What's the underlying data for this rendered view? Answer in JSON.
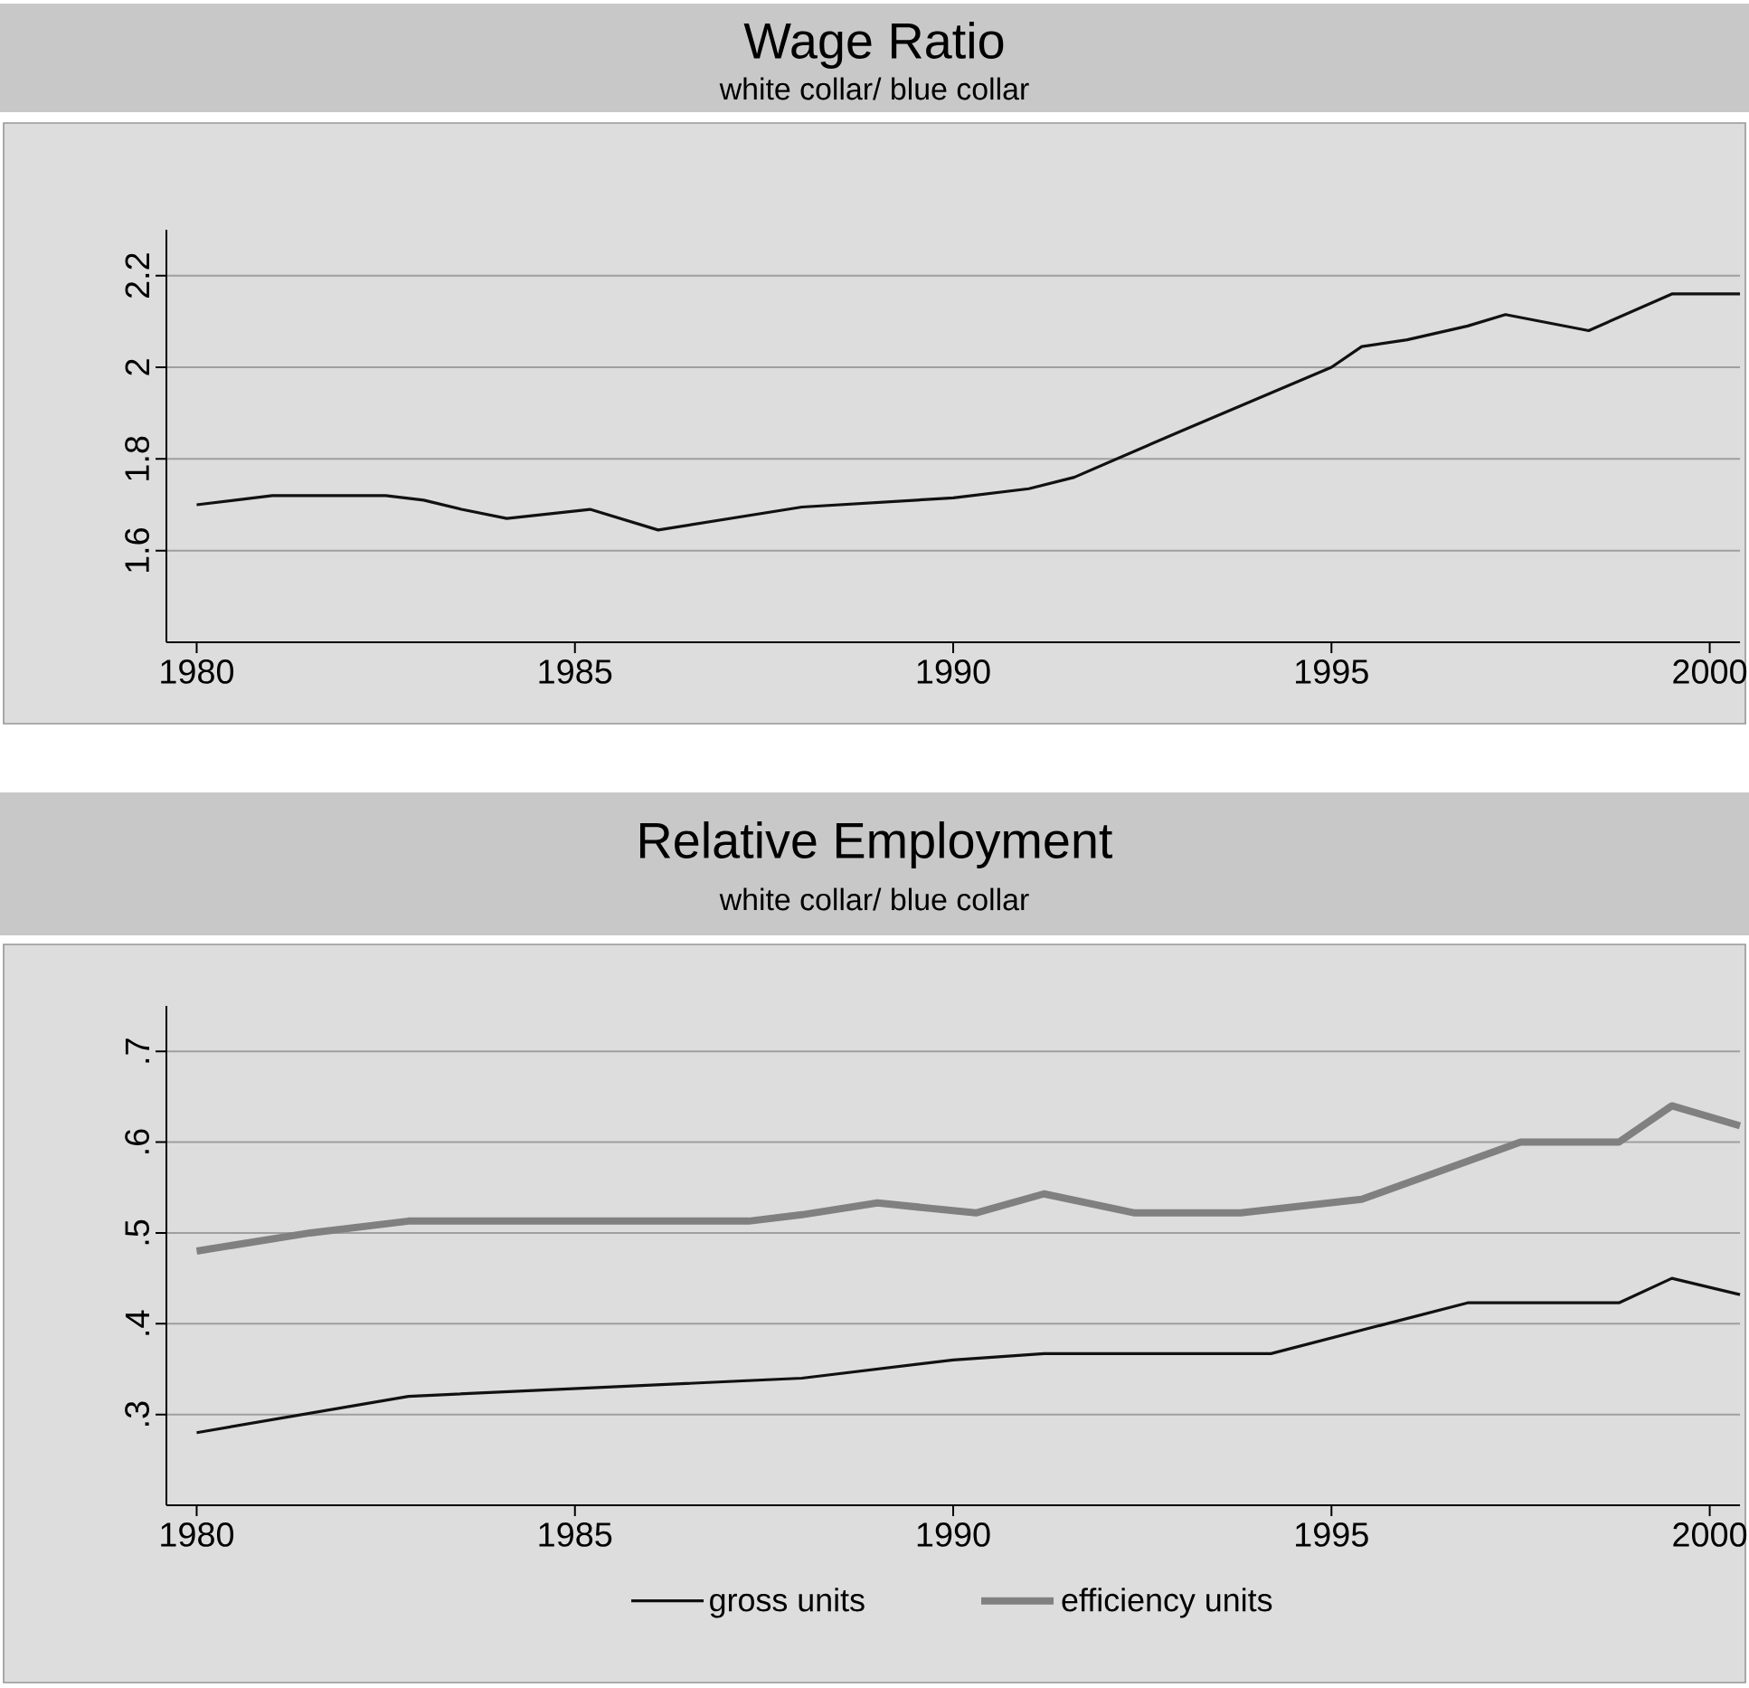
{
  "chart_data": [
    {
      "type": "line",
      "title": "Wage Ratio",
      "subtitle": "white collar/ blue collar",
      "xlim": [
        1979.6,
        2000.4
      ],
      "ylim": [
        1.4,
        2.3
      ],
      "xticks": [
        1980,
        1985,
        1990,
        1995,
        2000
      ],
      "yticks": [
        {
          "value": 1.6,
          "label": "1.6"
        },
        {
          "value": 1.8,
          "label": "1.8"
        },
        {
          "value": 2,
          "label": "2"
        },
        {
          "value": 2.2,
          "label": "2.2"
        }
      ],
      "grid": "y",
      "series": [
        {
          "color": "#111111",
          "x": [
            1980,
            1981,
            1982,
            1982.5,
            1983,
            1983.5,
            1984.1,
            1985.2,
            1986.1,
            1988,
            1990,
            1991,
            1991.6,
            1993,
            1994,
            1995,
            1995.4,
            1996,
            1996.8,
            1997.3,
            1998.4,
            1999.5,
            2000.4
          ],
          "values": [
            1.7,
            1.72,
            1.72,
            1.72,
            1.71,
            1.69,
            1.67,
            1.69,
            1.645,
            1.695,
            1.715,
            1.735,
            1.76,
            1.86,
            1.93,
            2.0,
            2.045,
            2.06,
            2.09,
            2.115,
            2.08,
            2.16,
            2.16
          ]
        }
      ]
    },
    {
      "type": "line",
      "title": "Relative Employment",
      "subtitle": "white collar/ blue collar",
      "xlim": [
        1979.6,
        2000.4
      ],
      "ylim": [
        0.2,
        0.75
      ],
      "xticks": [
        1980,
        1985,
        1990,
        1995,
        2000
      ],
      "yticks": [
        {
          "value": 0.3,
          "label": ".3"
        },
        {
          "value": 0.4,
          "label": ".4"
        },
        {
          "value": 0.5,
          "label": ".5"
        },
        {
          "value": 0.6,
          "label": ".6"
        },
        {
          "value": 0.7,
          "label": ".7"
        }
      ],
      "grid": "y",
      "legend": "bottom",
      "series": [
        {
          "name": "gross units",
          "color": "#111111",
          "x": [
            1980,
            1982.8,
            1988,
            1990,
            1991.2,
            1994.2,
            1995.5,
            1996.8,
            1998.8,
            1999.5,
            2000.4
          ],
          "values": [
            0.28,
            0.32,
            0.34,
            0.36,
            0.367,
            0.367,
            0.395,
            0.423,
            0.423,
            0.45,
            0.432
          ]
        },
        {
          "name": "efficiency units",
          "color": "#808080",
          "x": [
            1980,
            1981.5,
            1982.8,
            1987.3,
            1988,
            1989,
            1990.3,
            1991.2,
            1992.4,
            1993.8,
            1995.4,
            1997.5,
            1998.8,
            1999.5,
            2000.4
          ],
          "values": [
            0.48,
            0.5,
            0.513,
            0.513,
            0.52,
            0.533,
            0.522,
            0.543,
            0.522,
            0.522,
            0.537,
            0.6,
            0.6,
            0.64,
            0.618
          ]
        }
      ]
    }
  ]
}
